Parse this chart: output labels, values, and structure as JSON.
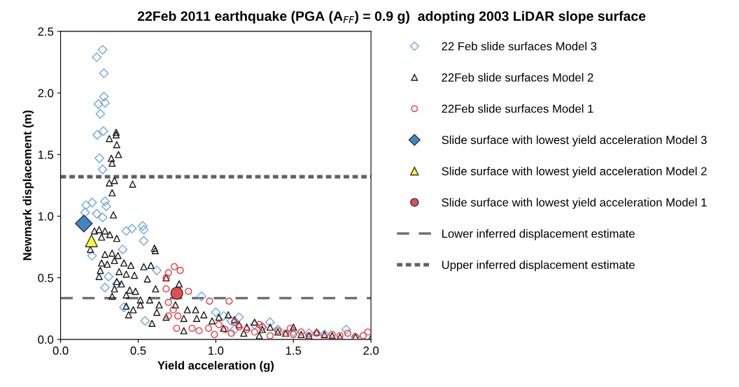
{
  "chart_data": {
    "type": "scatter",
    "title": "22Feb 2011 earthquake (PGA (A$_{FF}$) = 0.9 g)  adopting 2003 LiDAR slope surface",
    "xlabel": "Yield acceleration (g)",
    "ylabel": "Newmark displacement (m)",
    "xlim": [
      0.0,
      2.0
    ],
    "xticks": [
      {
        "value": 0,
        "label": "0.0"
      },
      0.5,
      {
        "value": 1,
        "label": "1.0"
      },
      1.5,
      {
        "value": 2,
        "label": "2.0"
      }
    ],
    "ylim": [
      0.0,
      2.5
    ],
    "yticks": [
      {
        "value": 0,
        "label": "0.0"
      },
      0.5,
      {
        "value": 1,
        "label": "1.0"
      },
      1.5,
      {
        "value": 2,
        "label": "2.0"
      },
      2.5
    ],
    "grid": false,
    "legend": "right",
    "series": [
      {
        "name": "22 Feb slide surfaces Model 3",
        "color": "#6fa8dc",
        "marker": "diamond",
        "x": [
          0.271,
          0.233,
          0.279,
          0.279,
          0.244,
          0.286,
          0.256,
          0.236,
          0.276,
          0.25,
          0.271,
          0.165,
          0.203,
          0.286,
          0.294,
          0.158,
          0.233,
          0.271,
          0.423,
          0.46,
          0.529,
          0.536,
          0.536,
          0.4,
          0.203,
          0.309,
          0.286,
          0.408,
          0.544,
          0.62,
          0.908,
          0.362,
          1.0,
          1.05,
          1.1,
          1.15,
          1.25,
          1.3,
          1.4,
          1.5,
          1.6,
          1.7,
          1.84,
          1.9,
          1.35,
          1.12
        ],
        "values": [
          2.35,
          2.29,
          2.16,
          1.97,
          1.91,
          1.92,
          1.83,
          1.66,
          1.69,
          1.47,
          1.38,
          1.09,
          1.11,
          1.12,
          1.08,
          1.03,
          1.02,
          0.99,
          0.88,
          0.9,
          0.92,
          0.89,
          0.8,
          0.73,
          0.68,
          0.51,
          0.42,
          0.26,
          0.15,
          0.56,
          0.35,
          0.45,
          0.22,
          0.19,
          0.15,
          0.18,
          0.12,
          0.1,
          0.08,
          0.06,
          0.05,
          0.04,
          0.08,
          0.02,
          0.14,
          0.08
        ]
      },
      {
        "name": "22Feb slide surfaces Model 2",
        "color": "#1a1a1a",
        "marker": "triangle",
        "x": [
          0.358,
          0.358,
          0.314,
          0.362,
          0.373,
          0.327,
          0.332,
          0.314,
          0.347,
          0.464,
          0.332,
          0.34,
          0.218,
          0.248,
          0.286,
          0.317,
          0.362,
          0.264,
          0.192,
          0.286,
          0.332,
          0.37,
          0.605,
          0.61,
          0.264,
          0.301,
          0.347,
          0.408,
          0.453,
          0.536,
          0.582,
          0.256,
          0.248,
          0.377,
          0.423,
          0.476,
          0.559,
          0.362,
          0.392,
          0.347,
          0.445,
          0.483,
          0.612,
          0.68,
          0.332,
          0.423,
          0.514,
          0.574,
          0.423,
          0.468,
          0.514,
          0.635,
          0.74,
          0.438,
          0.62,
          0.68,
          0.589,
          0.794,
          0.764,
          0.817,
          0.87,
          0.923,
          0.877,
          0.976,
          0.794,
          1.02,
          1.08,
          1.12,
          1.15,
          1.2,
          1.25,
          1.3,
          1.35,
          1.4,
          1.45,
          1.5,
          1.55,
          1.6,
          1.7,
          1.75,
          1.8,
          1.9,
          2.0,
          1.05,
          1.18,
          1.28,
          1.65
        ],
        "values": [
          1.68,
          1.66,
          1.63,
          1.58,
          1.5,
          1.47,
          1.43,
          1.27,
          1.29,
          1.26,
          1.19,
          1.01,
          0.88,
          0.89,
          0.88,
          0.85,
          0.82,
          0.83,
          0.73,
          0.69,
          0.7,
          0.68,
          0.74,
          0.72,
          0.62,
          0.61,
          0.64,
          0.62,
          0.6,
          0.59,
          0.6,
          0.56,
          0.51,
          0.55,
          0.53,
          0.52,
          0.49,
          0.47,
          0.45,
          0.41,
          0.4,
          0.39,
          0.41,
          0.5,
          0.35,
          0.36,
          0.32,
          0.32,
          0.27,
          0.24,
          0.28,
          0.28,
          0.28,
          0.2,
          0.22,
          0.18,
          0.13,
          0.07,
          0.45,
          0.24,
          0.24,
          0.2,
          0.17,
          0.15,
          0.17,
          0.18,
          0.2,
          0.16,
          0.12,
          0.1,
          0.14,
          0.08,
          0.1,
          0.06,
          0.05,
          0.1,
          0.04,
          0.03,
          0.04,
          0.03,
          0.02,
          0.02,
          0.01,
          0.09,
          0.05,
          0.03,
          0.06
        ]
      },
      {
        "name": "22Feb slide surfaces Model 1",
        "color": "#e8383d",
        "marker": "circle",
        "x": [
          0.733,
          0.771,
          0.695,
          0.68,
          0.68,
          0.824,
          0.96,
          0.695,
          0.726,
          0.695,
          0.756,
          0.748,
          0.847,
          0.892,
          0.953,
          0.991,
          1.086,
          1.02,
          1.06,
          1.1,
          1.15,
          1.2,
          1.25,
          1.3,
          1.35,
          1.4,
          1.45,
          1.5,
          1.55,
          1.6,
          1.65,
          1.7,
          1.75,
          1.8,
          1.85,
          1.9,
          1.95,
          1.98,
          1.12,
          1.28,
          1.48
        ],
        "values": [
          0.59,
          0.56,
          0.54,
          0.5,
          0.41,
          0.39,
          0.31,
          0.3,
          0.24,
          0.19,
          0.19,
          0.09,
          0.09,
          0.07,
          0.09,
          0.04,
          0.31,
          0.12,
          0.08,
          0.05,
          0.1,
          0.08,
          0.06,
          0.1,
          0.03,
          0.07,
          0.05,
          0.04,
          0.06,
          0.03,
          0.05,
          0.02,
          0.04,
          0.03,
          0.05,
          0.02,
          0.03,
          0.06,
          0.14,
          0.12,
          0.09
        ]
      },
      {
        "name": "Slide surface with lowest yield acceleration Model 3",
        "color": "#3f86c8",
        "colors": [
          "#3f86c8"
        ],
        "marker": "diamond",
        "x": [
          0.15
        ],
        "values": [
          0.94
        ]
      },
      {
        "name": "Slide surface with lowest yield acceleration Model 2",
        "color": "#ffff33",
        "colors": [
          "#ffff33"
        ],
        "marker": "triangle",
        "x": [
          0.199
        ],
        "values": [
          0.8
        ]
      },
      {
        "name": "Slide surface with lowest yield acceleration Model 1",
        "color": "#e05050",
        "colors": [
          "#e05050"
        ],
        "marker": "circle",
        "x": [
          0.749
        ],
        "values": [
          0.375
        ]
      }
    ],
    "ref_lines": [
      {
        "axis": "y",
        "value": 0.335,
        "label": "Lower inferred displacement estimate",
        "color": "#707070",
        "line_style": "dashed"
      },
      {
        "axis": "y",
        "value": 1.32,
        "label": "Upper inferred displacement estimate",
        "color": "#606060",
        "line_style": "dotted"
      }
    ]
  }
}
